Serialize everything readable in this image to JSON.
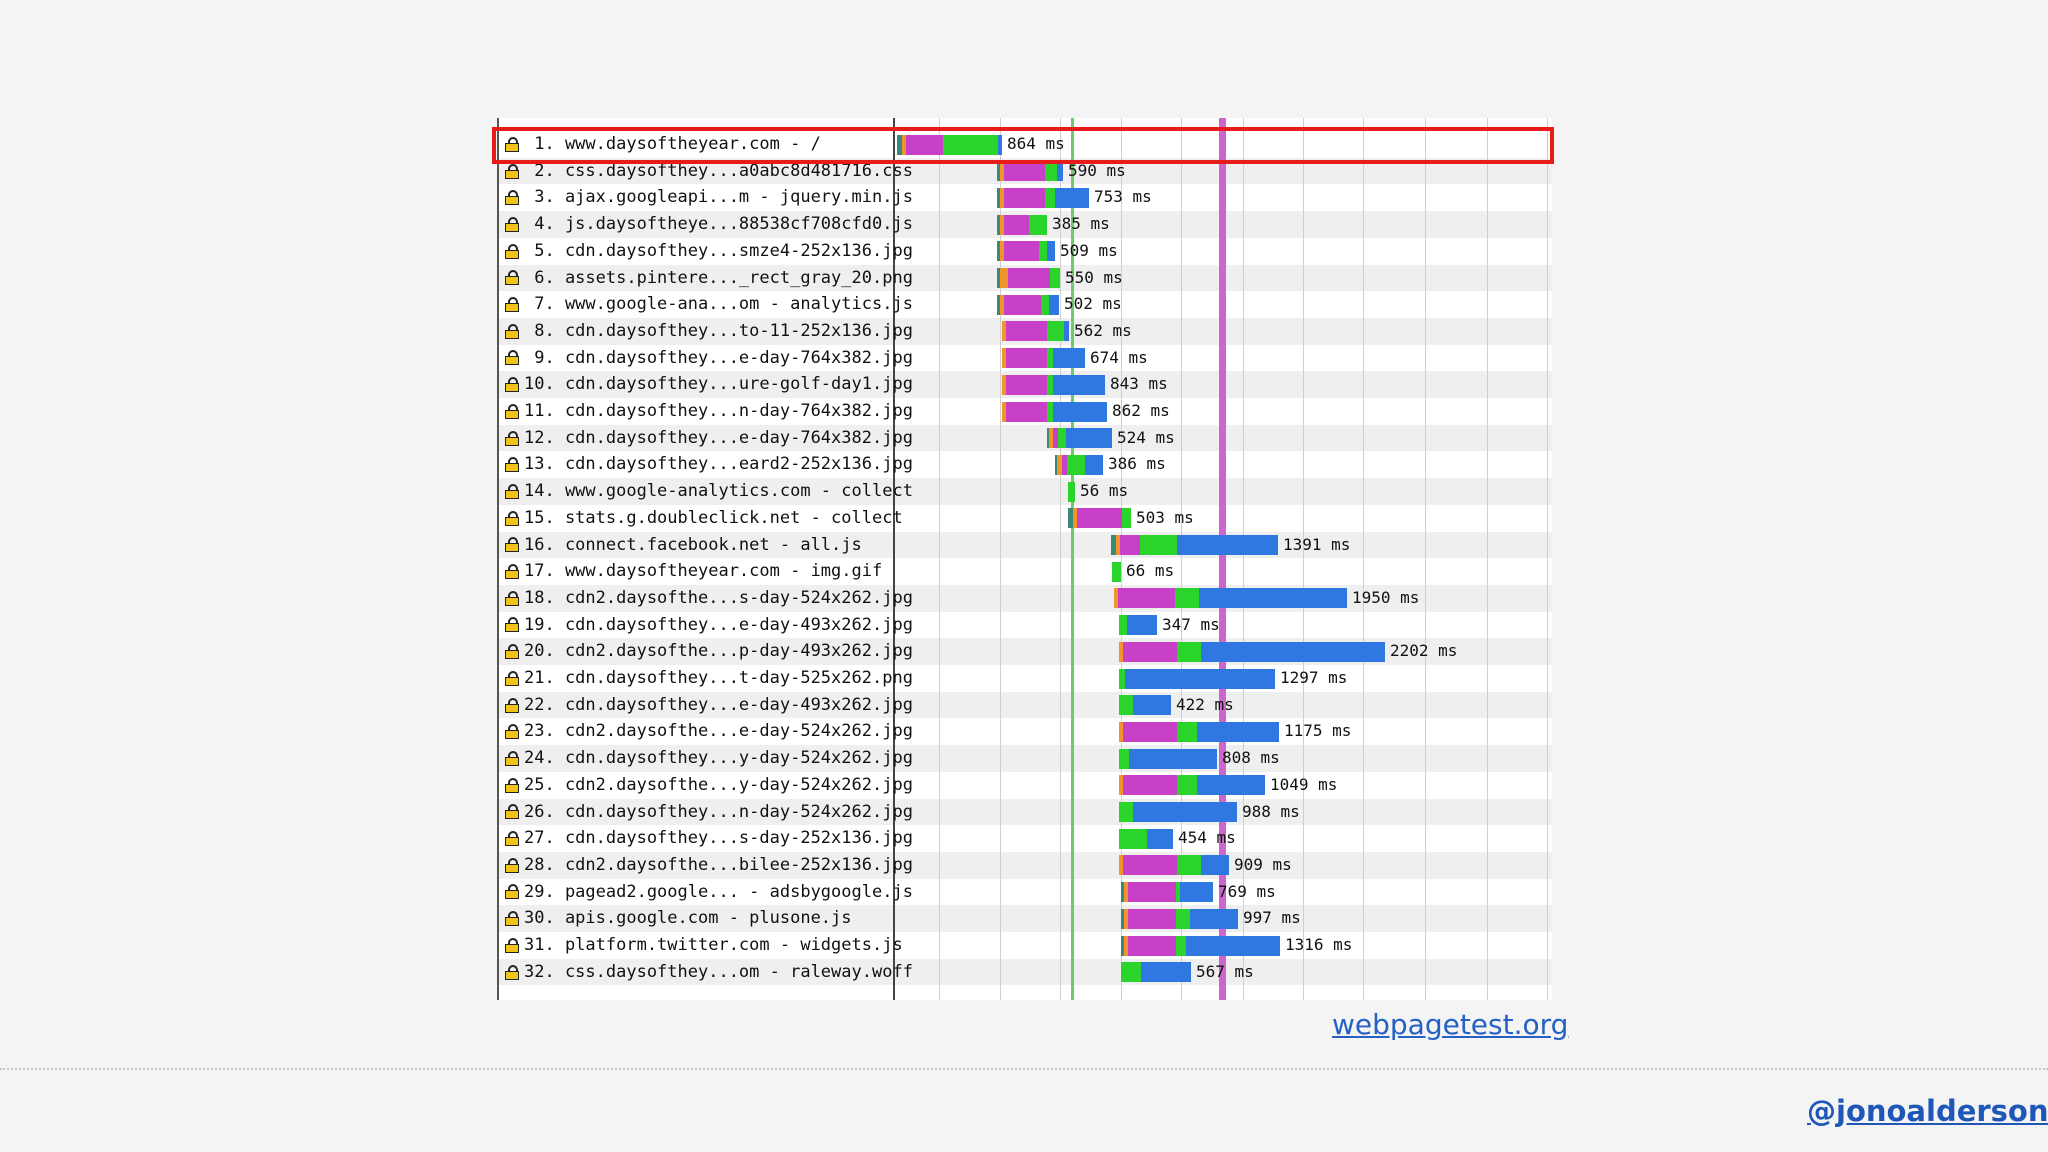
{
  "colors": {
    "dns": "#3a8a7a",
    "connect": "#f0942c",
    "ssl": "#c840c8",
    "ttfb": "#2ad42a",
    "download": "#2f78e2",
    "dom_interactive_line": "#cc66cc",
    "start_render_line": "#6ccc6c",
    "highlight_box": "#e81b1b"
  },
  "waterfall": {
    "rows": [
      {
        "label": " 1. www.daysoftheyear.com - /",
        "time": "864 ms",
        "start": 0,
        "dns": 5,
        "connect": 4,
        "ssl": 37,
        "ttfb": 55,
        "download": 4
      },
      {
        "label": " 2. css.daysofthey...a0abc8d481716.css",
        "time": "590 ms",
        "start": 100,
        "dns": 3,
        "connect": 4,
        "ssl": 41,
        "ttfb": 12,
        "download": 6
      },
      {
        "label": " 3. ajax.googleapi...m - jquery.min.js",
        "time": "753 ms",
        "start": 100,
        "dns": 3,
        "connect": 4,
        "ssl": 41,
        "ttfb": 10,
        "download": 34
      },
      {
        "label": " 4. js.daysoftheye...88538cf708cfd0.js",
        "time": "385 ms",
        "start": 100,
        "dns": 3,
        "connect": 4,
        "ssl": 25,
        "ttfb": 18,
        "download": 0
      },
      {
        "label": " 5. cdn.daysofthey...smze4-252x136.jpg",
        "time": "509 ms",
        "start": 100,
        "dns": 3,
        "connect": 4,
        "ssl": 35,
        "ttfb": 8,
        "download": 8
      },
      {
        "label": " 6. assets.pintere..._rect_gray_20.png",
        "time": "550 ms",
        "start": 100,
        "dns": 3,
        "connect": 8,
        "ssl": 42,
        "ttfb": 10,
        "download": 0
      },
      {
        "label": " 7. www.google-ana...om - analytics.js",
        "time": "502 ms",
        "start": 100,
        "dns": 3,
        "connect": 4,
        "ssl": 37,
        "ttfb": 8,
        "download": 10
      },
      {
        "label": " 8. cdn.daysofthey...to-11-252x136.jpg",
        "time": "562 ms",
        "start": 105,
        "dns": 0,
        "connect": 4,
        "ssl": 41,
        "ttfb": 17,
        "download": 5
      },
      {
        "label": " 9. cdn.daysofthey...e-day-764x382.jpg",
        "time": "674 ms",
        "start": 105,
        "dns": 0,
        "connect": 4,
        "ssl": 41,
        "ttfb": 6,
        "download": 32
      },
      {
        "label": "10. cdn.daysofthey...ure-golf-day1.jpg",
        "time": "843 ms",
        "start": 105,
        "dns": 0,
        "connect": 4,
        "ssl": 41,
        "ttfb": 6,
        "download": 52
      },
      {
        "label": "11. cdn.daysofthey...n-day-764x382.jpg",
        "time": "862 ms",
        "start": 105,
        "dns": 0,
        "connect": 4,
        "ssl": 41,
        "ttfb": 6,
        "download": 54
      },
      {
        "label": "12. cdn.daysofthey...e-day-764x382.jpg",
        "time": "524 ms",
        "start": 150,
        "dns": 2,
        "connect": 4,
        "ssl": 5,
        "ttfb": 8,
        "download": 46
      },
      {
        "label": "13. cdn.daysofthey...eard2-252x136.jpg",
        "time": "386 ms",
        "start": 158,
        "dns": 2,
        "connect": 5,
        "ssl": 5,
        "ttfb": 18,
        "download": 18
      },
      {
        "label": "14. www.google-analytics.com - collect",
        "time": "56 ms",
        "start": 171,
        "dns": 0,
        "connect": 0,
        "ssl": 0,
        "ttfb": 7,
        "download": 0
      },
      {
        "label": "15. stats.g.doubleclick.net - collect",
        "time": "503 ms",
        "start": 171,
        "dns": 5,
        "connect": 4,
        "ssl": 45,
        "ttfb": 9,
        "download": 0
      },
      {
        "label": "16. connect.facebook.net - all.js",
        "time": "1391 ms",
        "start": 214,
        "dns": 5,
        "connect": 4,
        "ssl": 20,
        "ttfb": 37,
        "download": 101
      },
      {
        "label": "17. www.daysoftheyear.com - img.gif",
        "time": "66 ms",
        "start": 215,
        "dns": 0,
        "connect": 0,
        "ssl": 0,
        "ttfb": 9,
        "download": 0
      },
      {
        "label": "18. cdn2.daysofthe...s-day-524x262.jpg",
        "time": "1950 ms",
        "start": 217,
        "dns": 0,
        "connect": 4,
        "ssl": 57,
        "ttfb": 24,
        "download": 148
      },
      {
        "label": "19. cdn.daysofthey...e-day-493x262.jpg",
        "time": "347 ms",
        "start": 222,
        "dns": 0,
        "connect": 0,
        "ssl": 0,
        "ttfb": 8,
        "download": 30
      },
      {
        "label": "20. cdn2.daysofthe...p-day-493x262.jpg",
        "time": "2202 ms",
        "start": 222,
        "dns": 0,
        "connect": 4,
        "ssl": 54,
        "ttfb": 24,
        "download": 184
      },
      {
        "label": "21. cdn.daysofthey...t-day-525x262.png",
        "time": "1297 ms",
        "start": 222,
        "dns": 0,
        "connect": 0,
        "ssl": 0,
        "ttfb": 6,
        "download": 150
      },
      {
        "label": "22. cdn.daysofthey...e-day-493x262.jpg",
        "time": "422 ms",
        "start": 222,
        "dns": 0,
        "connect": 0,
        "ssl": 0,
        "ttfb": 14,
        "download": 38
      },
      {
        "label": "23. cdn2.daysofthe...e-day-524x262.jpg",
        "time": "1175 ms",
        "start": 222,
        "dns": 0,
        "connect": 4,
        "ssl": 54,
        "ttfb": 20,
        "download": 82
      },
      {
        "label": "24. cdn.daysofthey...y-day-524x262.jpg",
        "time": "808 ms",
        "start": 222,
        "dns": 0,
        "connect": 0,
        "ssl": 0,
        "ttfb": 10,
        "download": 88
      },
      {
        "label": "25. cdn2.daysofthe...y-day-524x262.jpg",
        "time": "1049 ms",
        "start": 222,
        "dns": 0,
        "connect": 4,
        "ssl": 54,
        "ttfb": 20,
        "download": 68
      },
      {
        "label": "26. cdn.daysofthey...n-day-524x262.jpg",
        "time": "988 ms",
        "start": 222,
        "dns": 0,
        "connect": 0,
        "ssl": 0,
        "ttfb": 14,
        "download": 104
      },
      {
        "label": "27. cdn.daysofthey...s-day-252x136.jpg",
        "time": "454 ms",
        "start": 222,
        "dns": 0,
        "connect": 0,
        "ssl": 0,
        "ttfb": 28,
        "download": 26
      },
      {
        "label": "28. cdn2.daysofthe...bilee-252x136.jpg",
        "time": "909 ms",
        "start": 222,
        "dns": 0,
        "connect": 4,
        "ssl": 54,
        "ttfb": 24,
        "download": 28
      },
      {
        "label": "29. pagead2.google... - adsbygoogle.js",
        "time": "769 ms",
        "start": 224,
        "dns": 3,
        "connect": 4,
        "ssl": 48,
        "ttfb": 4,
        "download": 33
      },
      {
        "label": "30. apis.google.com - plusone.js",
        "time": "997 ms",
        "start": 224,
        "dns": 3,
        "connect": 4,
        "ssl": 48,
        "ttfb": 14,
        "download": 48
      },
      {
        "label": "31. platform.twitter.com - widgets.js",
        "time": "1316 ms",
        "start": 224,
        "dns": 3,
        "connect": 4,
        "ssl": 48,
        "ttfb": 10,
        "download": 94
      },
      {
        "label": "32. css.daysofthey...om - raleway.woff",
        "time": "567 ms",
        "start": 224,
        "dns": 0,
        "connect": 0,
        "ssl": 0,
        "ttfb": 20,
        "download": 50
      }
    ]
  },
  "footer": {
    "source_link": "webpagetest.org",
    "author_handle": "@jonoalderson"
  }
}
